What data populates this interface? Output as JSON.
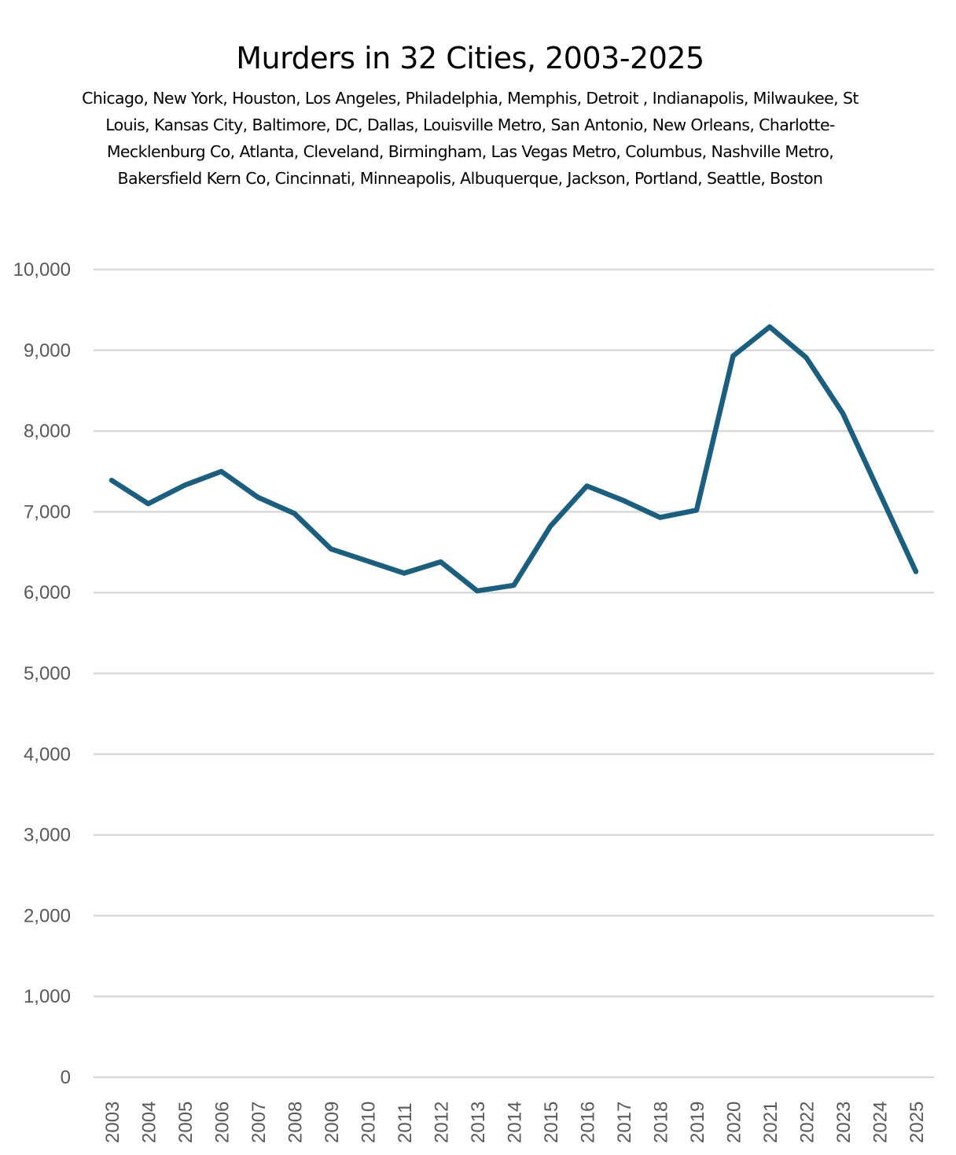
{
  "chart_data": {
    "type": "line",
    "title": "Murders in 32 Cities, 2003-2025",
    "subtitle": "Chicago, New York, Houston, Los Angeles, Philadelphia, Memphis, Detroit , Indianapolis, Milwaukee, St Louis, Kansas City, Baltimore, DC, Dallas, Louisville Metro, San Antonio, New Orleans, Charlotte-Mecklenburg Co, Atlanta, Cleveland, Birmingham, Las Vegas Metro, Columbus, Nashville Metro, Bakersfield Kern Co, Cincinnati, Minneapolis, Albuquerque, Jackson, Portland, Seattle, Boston",
    "xlabel": "",
    "ylabel": "",
    "x": [
      "2003",
      "2004",
      "2005",
      "2006",
      "2007",
      "2008",
      "2009",
      "2010",
      "2011",
      "2012",
      "2013",
      "2014",
      "2015",
      "2016",
      "2017",
      "2018",
      "2019",
      "2020",
      "2021",
      "2022",
      "2023",
      "2024",
      "2025"
    ],
    "series": [
      {
        "name": "Murders",
        "color": "#1a5e80",
        "values": [
          7390,
          7100,
          7330,
          7500,
          7180,
          6980,
          6540,
          6390,
          6240,
          6380,
          6020,
          6090,
          6820,
          7320,
          7140,
          6930,
          7020,
          8930,
          9290,
          8910,
          8220,
          7240,
          6260
        ]
      }
    ],
    "ylim": [
      0,
      10000
    ],
    "yticks": [
      0,
      1000,
      2000,
      3000,
      4000,
      5000,
      6000,
      7000,
      8000,
      9000,
      10000
    ],
    "ytick_labels": [
      "0",
      "1,000",
      "2,000",
      "3,000",
      "4,000",
      "5,000",
      "6,000",
      "7,000",
      "8,000",
      "9,000",
      "10,000"
    ],
    "grid": true,
    "legend": "none",
    "gridline_color": "#d9d9d9",
    "tick_label_color": "#595959"
  }
}
